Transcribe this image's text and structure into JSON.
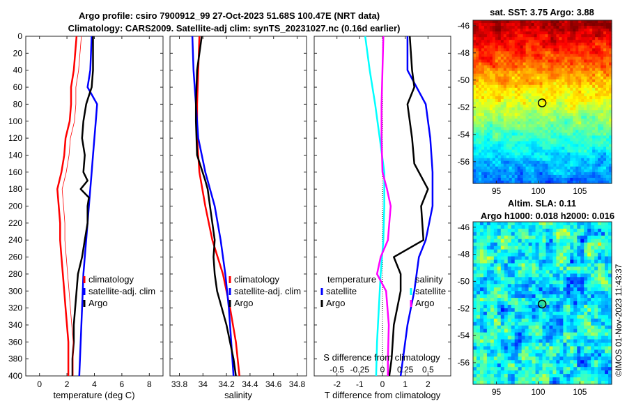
{
  "figure": {
    "title_line1": "Argo profile: csiro 7900912_99 27-Oct-2023 51.68S 100.47E (NRT data)",
    "title_line2": "Climatology: CARS2009. Satellite-adj clim: synTS_20231027.nc (0.16d earlier)",
    "watermark": "©IMOS 01-Nov-2023 11:43:37"
  },
  "colors": {
    "climatology": "#ff0000",
    "satellite": "#0000ff",
    "argo": "#000000",
    "sal_satellite": "#00ffff",
    "sal_argo": "#ff00ff"
  },
  "chart_data": [
    {
      "id": "temperature",
      "type": "line",
      "xlabel": "temperature (deg C)",
      "ylabel": "",
      "xlim": [
        -1,
        9
      ],
      "ylim": [
        400,
        0
      ],
      "xticks": [
        "0",
        "2",
        "4",
        "6",
        "8"
      ],
      "xtick_values": [
        0,
        2,
        4,
        6,
        8
      ],
      "yticks": [
        "0",
        "20",
        "40",
        "60",
        "80",
        "100",
        "120",
        "140",
        "160",
        "180",
        "200",
        "220",
        "240",
        "260",
        "280",
        "300",
        "320",
        "340",
        "360",
        "380",
        "400"
      ],
      "legend": [
        {
          "label": "climatology",
          "color": "#ff0000"
        },
        {
          "label": "satellite-adj. clim",
          "color": "#0000ff"
        },
        {
          "label": "Argo",
          "color": "#000000"
        }
      ],
      "series": [
        {
          "name": "climatology",
          "color": "#ff0000",
          "depth": [
            0,
            20,
            40,
            60,
            80,
            100,
            120,
            140,
            160,
            180,
            200,
            220,
            240,
            260,
            280,
            300,
            320,
            340,
            360,
            380,
            400
          ],
          "values": [
            2.7,
            2.6,
            2.5,
            2.3,
            2.3,
            2.2,
            1.9,
            1.8,
            1.6,
            1.3,
            1.4,
            1.5,
            1.5,
            1.6,
            1.7,
            1.8,
            1.9,
            2.0,
            2.1,
            2.1,
            2.1
          ]
        },
        {
          "name": "satellite-adj. clim",
          "color": "#0000ff",
          "depth": [
            0,
            20,
            40,
            60,
            80,
            100,
            120,
            140,
            160,
            180,
            200,
            220,
            240,
            260,
            280,
            300,
            320,
            340,
            360,
            380,
            400
          ],
          "values": [
            3.8,
            3.75,
            3.7,
            3.5,
            4.2,
            4.1,
            4.0,
            3.9,
            3.8,
            3.7,
            3.6,
            3.5,
            3.4,
            3.3,
            3.2,
            3.15,
            3.1,
            3.05,
            3.0,
            2.95,
            2.9
          ]
        },
        {
          "name": "Argo",
          "color": "#000000",
          "depth": [
            0,
            20,
            40,
            60,
            70,
            80,
            100,
            120,
            140,
            160,
            170,
            180,
            190,
            200,
            220,
            240,
            260,
            280,
            300,
            320,
            340,
            360,
            380,
            400
          ],
          "values": [
            3.9,
            3.9,
            3.9,
            3.8,
            3.6,
            3.4,
            3.2,
            3.1,
            3.3,
            3.2,
            3.5,
            3.0,
            3.6,
            3.5,
            3.5,
            3.3,
            3.1,
            2.8,
            2.7,
            2.6,
            2.5,
            2.5,
            2.4,
            2.4
          ]
        }
      ]
    },
    {
      "id": "salinity",
      "type": "line",
      "xlabel": "salinity",
      "ylabel": "",
      "xlim": [
        33.72,
        34.88
      ],
      "ylim": [
        400,
        0
      ],
      "xticks": [
        "33.8",
        "34",
        "34.2",
        "34.4",
        "34.6",
        "34.8"
      ],
      "xtick_values": [
        33.8,
        34.0,
        34.2,
        34.4,
        34.6,
        34.8
      ],
      "legend": [
        {
          "label": "climatology",
          "color": "#ff0000"
        },
        {
          "label": "satellite-adj. clim",
          "color": "#0000ff"
        },
        {
          "label": "Argo",
          "color": "#000000"
        }
      ],
      "series": [
        {
          "name": "climatology",
          "color": "#ff0000",
          "depth": [
            0,
            40,
            80,
            120,
            160,
            200,
            240,
            280,
            320,
            360,
            400
          ],
          "values": [
            33.97,
            33.96,
            33.95,
            33.95,
            33.97,
            34.02,
            34.08,
            34.17,
            34.23,
            34.28,
            34.31
          ]
        },
        {
          "name": "satellite-adj. clim",
          "color": "#0000ff",
          "depth": [
            0,
            40,
            80,
            120,
            160,
            200,
            240,
            280,
            320,
            360,
            400
          ],
          "values": [
            33.91,
            33.92,
            33.94,
            33.96,
            34.02,
            34.1,
            34.15,
            34.19,
            34.22,
            34.24,
            34.26
          ]
        },
        {
          "name": "Argo",
          "color": "#000000",
          "depth": [
            0,
            40,
            80,
            100,
            140,
            170,
            180,
            200,
            240,
            260,
            280,
            300,
            340,
            380,
            400
          ],
          "values": [
            33.99,
            33.95,
            33.94,
            33.94,
            33.95,
            34.02,
            34.04,
            34.06,
            34.1,
            34.09,
            34.1,
            34.12,
            34.2,
            34.26,
            34.28
          ]
        }
      ]
    },
    {
      "id": "difference",
      "type": "line",
      "xlabel": "T difference from climatology",
      "x2label": "S difference from climatology",
      "xlim": [
        -3,
        3
      ],
      "ylim": [
        400,
        0
      ],
      "xticks": [
        "-2",
        "-1",
        "0",
        "1",
        "2"
      ],
      "xtick_values": [
        -2,
        -1,
        0,
        1,
        2
      ],
      "x2ticks": [
        "-0.5",
        "-0.25",
        "0",
        "0.25",
        "0.5"
      ],
      "x2tick_values": [
        -0.5,
        -0.25,
        0,
        0.25,
        0.5
      ],
      "legend_groups": [
        {
          "heading": "temperature",
          "entries": [
            {
              "label": "satellite",
              "color": "#0000ff"
            },
            {
              "label": "Argo",
              "color": "#000000"
            }
          ]
        },
        {
          "heading": "salinity",
          "entries": [
            {
              "label": "satellite",
              "color": "#00ffff"
            },
            {
              "label": "Argo",
              "color": "#ff00ff"
            }
          ]
        }
      ],
      "series": [
        {
          "name": "temperature satellite",
          "color": "#0000ff",
          "depth": [
            0,
            40,
            80,
            120,
            160,
            180,
            200,
            240,
            260,
            300,
            340,
            380,
            400
          ],
          "values": [
            1.1,
            1.1,
            1.9,
            2.1,
            2.2,
            2.2,
            2.2,
            1.9,
            1.6,
            1.4,
            1.1,
            0.9,
            0.8
          ]
        },
        {
          "name": "temperature Argo",
          "color": "#000000",
          "depth": [
            0,
            40,
            60,
            80,
            120,
            150,
            180,
            200,
            240,
            260,
            280,
            300,
            340,
            380,
            400
          ],
          "values": [
            1.2,
            1.3,
            1.4,
            1.1,
            1.3,
            1.4,
            2.0,
            1.7,
            1.8,
            0.5,
            0.8,
            0.8,
            0.5,
            0.4,
            0.3
          ]
        },
        {
          "name": "salinity satellite",
          "color": "#00ffff",
          "depth": [
            0,
            40,
            80,
            120,
            160,
            200,
            240,
            280,
            320,
            360,
            400
          ],
          "values": [
            -0.19,
            -0.14,
            -0.08,
            -0.03,
            0.02,
            0.02,
            0.01,
            -0.02,
            -0.04,
            -0.06,
            -0.07
          ]
        },
        {
          "name": "salinity Argo",
          "color": "#ff00ff",
          "depth": [
            0,
            40,
            80,
            120,
            160,
            180,
            200,
            240,
            260,
            280,
            300,
            340,
            380,
            400
          ],
          "values": [
            0.01,
            0.0,
            -0.01,
            -0.01,
            0.0,
            0.05,
            0.09,
            0.06,
            -0.02,
            -0.06,
            0.04,
            0.07,
            0.06,
            0.06
          ]
        }
      ]
    },
    {
      "id": "sst_map",
      "type": "heatmap",
      "title": "sat. SST: 3.75 Argo: 3.88",
      "xticks": [
        "95",
        "100",
        "105"
      ],
      "xtick_values": [
        95,
        100,
        105
      ],
      "yticks": [
        "-46",
        "-48",
        "-50",
        "-52",
        "-54",
        "-56"
      ],
      "ytick_values": [
        -46,
        -48,
        -50,
        -52,
        -54,
        -56
      ],
      "xlim": [
        92.2,
        108.8
      ],
      "ylim": [
        -57.6,
        -45.6
      ],
      "marker": {
        "lon": 100.47,
        "lat": -51.68
      }
    },
    {
      "id": "sla_map",
      "type": "heatmap",
      "title_line1": "Altim. SLA: 0.11",
      "title_line2": "Argo h1000: 0.018 h2000: 0.016",
      "xticks": [
        "95",
        "100",
        "105"
      ],
      "xtick_values": [
        95,
        100,
        105
      ],
      "yticks": [
        "-46",
        "-48",
        "-50",
        "-52",
        "-54",
        "-56"
      ],
      "ytick_values": [
        -46,
        -48,
        -50,
        -52,
        -54,
        -56
      ],
      "xlim": [
        92.2,
        108.8
      ],
      "ylim": [
        -57.6,
        -45.6
      ],
      "marker": {
        "lon": 100.47,
        "lat": -51.68
      }
    }
  ]
}
